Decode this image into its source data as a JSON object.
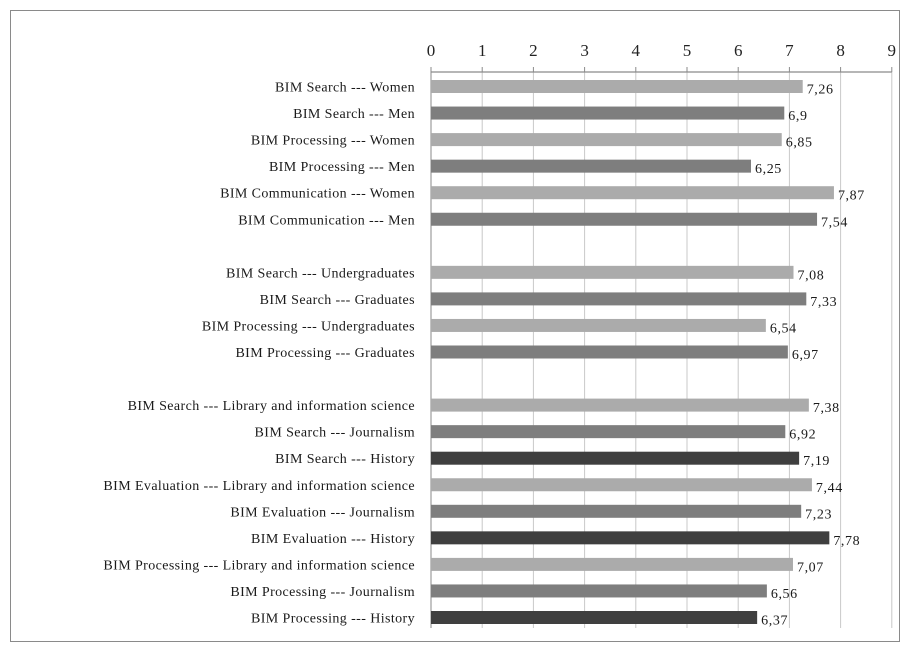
{
  "chart_data": {
    "type": "bar",
    "orientation": "horizontal",
    "x_axis_position": "top",
    "xlim": [
      0,
      9
    ],
    "x_ticks": [
      "0",
      "1",
      "2",
      "3",
      "4",
      "5",
      "6",
      "7",
      "8",
      "9"
    ],
    "grid": true,
    "title": "",
    "xlabel": "",
    "ylabel": "",
    "colors": {
      "light": "#ababab",
      "medium": "#7e7e7e",
      "dark": "#3f3f3f",
      "grid": "#c8c8c8",
      "axis": "#8a8a8a"
    },
    "groups": [
      {
        "bars": [
          {
            "label": "BIM Search --- Women",
            "value": 7.26,
            "value_label": "7,26",
            "shade": "light"
          },
          {
            "label": "BIM Search --- Men",
            "value": 6.9,
            "value_label": "6,9",
            "shade": "medium"
          },
          {
            "label": "BIM Processing --- Women",
            "value": 6.85,
            "value_label": "6,85",
            "shade": "light"
          },
          {
            "label": "BIM Processing --- Men",
            "value": 6.25,
            "value_label": "6,25",
            "shade": "medium"
          },
          {
            "label": "BIM Communication --- Women",
            "value": 7.87,
            "value_label": "7,87",
            "shade": "light"
          },
          {
            "label": "BIM Communication --- Men",
            "value": 7.54,
            "value_label": "7,54",
            "shade": "medium"
          }
        ]
      },
      {
        "bars": [
          {
            "label": "BIM Search --- Undergraduates",
            "value": 7.08,
            "value_label": "7,08",
            "shade": "light"
          },
          {
            "label": "BIM Search --- Graduates",
            "value": 7.33,
            "value_label": "7,33",
            "shade": "medium"
          },
          {
            "label": "BIM Processing --- Undergraduates",
            "value": 6.54,
            "value_label": "6,54",
            "shade": "light"
          },
          {
            "label": "BIM Processing --- Graduates",
            "value": 6.97,
            "value_label": "6,97",
            "shade": "medium"
          }
        ]
      },
      {
        "bars": [
          {
            "label": "BIM Search --- Library and information science",
            "value": 7.38,
            "value_label": "7,38",
            "shade": "light"
          },
          {
            "label": "BIM Search --- Journalism",
            "value": 6.92,
            "value_label": "6,92",
            "shade": "medium"
          },
          {
            "label": "BIM Search --- History",
            "value": 7.19,
            "value_label": "7,19",
            "shade": "dark"
          },
          {
            "label": "BIM Evaluation --- Library and information science",
            "value": 7.44,
            "value_label": "7,44",
            "shade": "light"
          },
          {
            "label": "BIM Evaluation --- Journalism",
            "value": 7.23,
            "value_label": "7,23",
            "shade": "medium"
          },
          {
            "label": "BIM Evaluation --- History",
            "value": 7.78,
            "value_label": "7,78",
            "shade": "dark"
          },
          {
            "label": "BIM Processing --- Library and information science",
            "value": 7.07,
            "value_label": "7,07",
            "shade": "light"
          },
          {
            "label": "BIM Processing --- Journalism",
            "value": 6.56,
            "value_label": "6,56",
            "shade": "medium"
          },
          {
            "label": "BIM Processing --- History",
            "value": 6.37,
            "value_label": "6,37",
            "shade": "dark"
          }
        ]
      }
    ]
  }
}
